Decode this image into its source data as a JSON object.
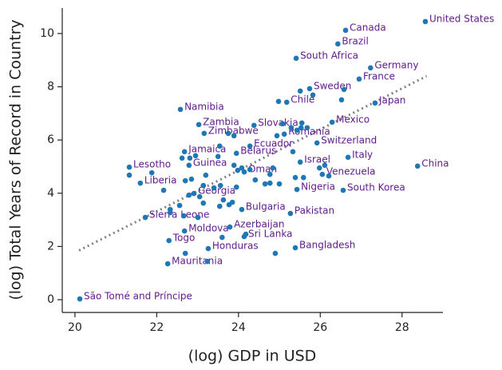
{
  "chart_data": {
    "type": "scatter",
    "x_label": "(log) GDP in USD",
    "y_label": "(log) Total Years of Record in Country",
    "color": "#1f77b4",
    "label_color": "#5e1a8c",
    "trend_color": "#808080",
    "xlim": [
      19.69,
      29.0
    ],
    "ylim": [
      -0.48,
      10.96
    ],
    "xticks": [
      20,
      22,
      24,
      26,
      28
    ],
    "yticks": [
      0,
      2,
      4,
      6,
      8,
      10
    ],
    "trendline": {
      "x": [
        20.1,
        28.6
      ],
      "y": [
        1.85,
        8.4
      ]
    },
    "series": [
      {
        "name": null,
        "x": [
          28.57,
          26.62,
          26.43,
          25.41,
          27.23,
          26.95,
          25.74,
          27.34,
          25.18,
          22.58,
          26.29,
          23.03,
          24.38,
          23.16,
          25.12,
          25.92,
          24.28,
          22.68,
          23.95,
          26.68,
          28.38,
          25.51,
          21.33,
          22.79,
          24.14,
          26.05,
          21.6,
          25.43,
          26.56,
          22.91,
          24.08,
          25.27,
          21.72,
          22.68,
          23.79,
          22.3,
          24.14,
          23.26,
          25.39,
          22.27,
          20.12,
          21.33,
          21.88,
          22.17,
          22.33,
          22.33,
          22.66,
          22.62,
          22.7,
          22.85,
          22.81,
          22.95,
          23.2,
          23.14,
          23.4,
          23.54,
          23.63,
          23.77,
          23.85,
          23.56,
          23.5,
          23.75,
          23.89,
          23.89,
          23.98,
          23.95,
          24.08,
          24.28,
          24.41,
          24.65,
          24.77,
          24.84,
          24.77,
          25.0,
          24.98,
          25.08,
          24.94,
          25.29,
          25.43,
          25.53,
          25.55,
          25.68,
          25.51,
          25.82,
          25.33,
          25.59,
          25.39,
          25.98,
          26.11,
          26.52,
          26.58,
          26.21,
          22.79,
          23.05,
          22.56,
          23.01,
          22.7,
          23.6,
          24.18,
          24.9,
          23.24,
          23.14,
          23.54
        ],
        "y": [
          10.45,
          10.12,
          9.61,
          9.07,
          8.71,
          8.29,
          7.93,
          7.39,
          7.42,
          7.15,
          6.67,
          6.58,
          6.55,
          6.25,
          6.22,
          5.89,
          5.77,
          5.56,
          5.5,
          5.35,
          5.02,
          5.17,
          4.98,
          5.05,
          4.8,
          4.71,
          4.38,
          4.14,
          4.11,
          3.99,
          3.39,
          3.24,
          3.09,
          2.58,
          2.73,
          2.22,
          2.37,
          1.92,
          1.95,
          1.35,
          0.03,
          4.68,
          4.77,
          4.11,
          3.39,
          3.27,
          3.15,
          5.32,
          4.47,
          4.53,
          5.32,
          5.41,
          4.68,
          4.29,
          4.2,
          3.51,
          3.75,
          3.57,
          3.66,
          4.29,
          5.38,
          6.25,
          6.16,
          5.05,
          4.86,
          4.23,
          4.95,
          4.89,
          4.5,
          4.35,
          4.71,
          4.95,
          4.38,
          4.35,
          7.45,
          6.61,
          6.16,
          6.46,
          6.37,
          6.46,
          6.64,
          6.46,
          7.84,
          7.69,
          5.56,
          4.59,
          4.59,
          4.95,
          5.05,
          7.51,
          7.9,
          4.65,
          3.93,
          3.87,
          3.54,
          3.09,
          1.74,
          2.34,
          2.46,
          1.74,
          1.44,
          3.63,
          5.77
        ],
        "labels": [
          "United States",
          "Canada",
          "Brazil",
          "South Africa",
          "Germany",
          "France",
          "Sweden",
          "Japan",
          "Chile",
          "Namibia",
          "Mexico",
          "Zambia",
          "Slovakia",
          "Zimbabwe",
          "Romania",
          "Switzerland",
          "Ecuador",
          "Jamaica",
          "Belarus",
          "Italy",
          "China",
          "Israel",
          "Lesotho",
          "Guinea",
          "Oman",
          "Venezuela",
          "Liberia",
          "Nigeria",
          "South Korea",
          "Georgia",
          "Bulgaria",
          "Pakistan",
          "Sierra Leone",
          "Moldova",
          "Azerbaijan",
          "Togo",
          "Sri Lanka",
          "Honduras",
          "Bangladesh",
          "Mauritania",
          "São Tomé and Príncipe",
          null,
          null,
          null,
          null,
          null,
          null,
          null,
          null,
          null,
          null,
          null,
          null,
          null,
          null,
          null,
          null,
          null,
          null,
          null,
          null,
          null,
          null,
          null,
          null,
          null,
          null,
          null,
          null,
          null,
          null,
          null,
          null,
          null,
          null,
          null,
          null,
          null,
          null,
          null,
          null,
          null,
          null,
          null,
          null,
          null,
          null,
          null,
          null,
          null,
          null,
          null,
          null,
          null,
          null,
          null,
          null,
          null,
          null,
          null,
          null,
          null,
          null
        ]
      }
    ]
  }
}
